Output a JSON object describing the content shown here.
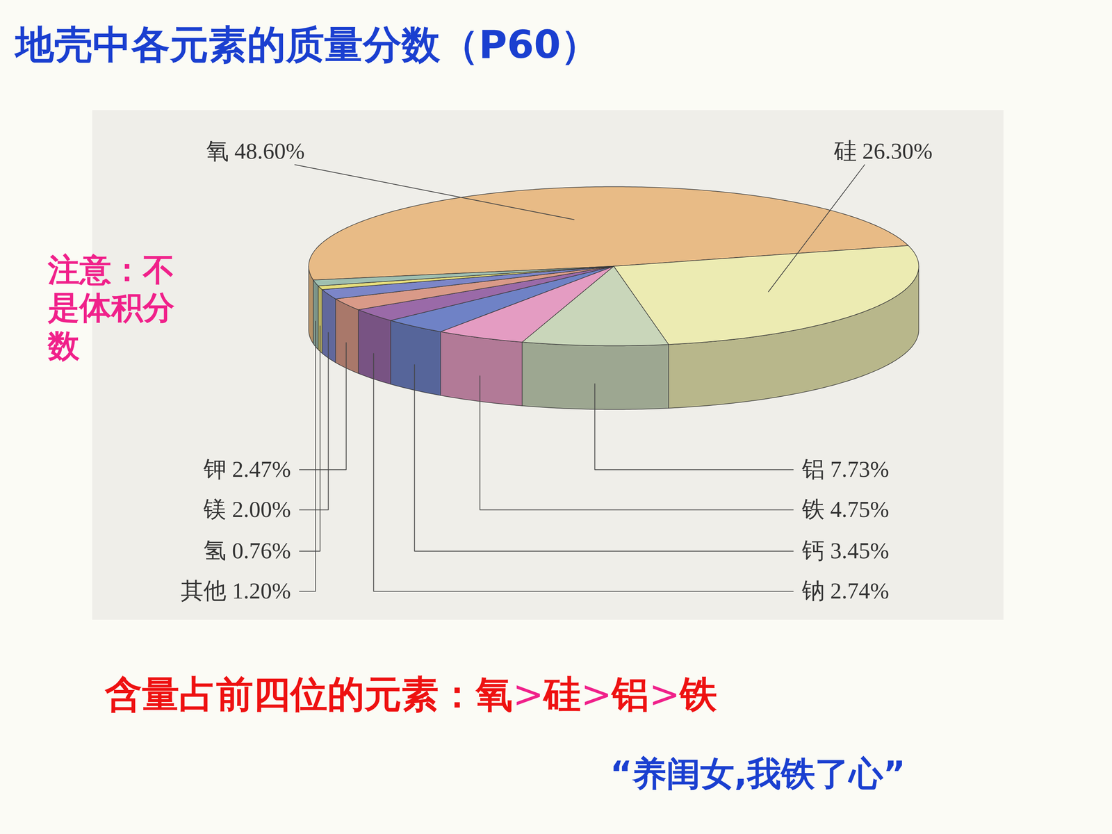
{
  "chart_data": {
    "type": "pie",
    "title": "地壳中各元素的质量分数（P60）",
    "categories": [
      "氧",
      "硅",
      "铝",
      "铁",
      "钙",
      "钠",
      "钾",
      "镁",
      "氢",
      "其他"
    ],
    "values": [
      48.6,
      26.3,
      7.73,
      4.75,
      3.45,
      2.74,
      2.47,
      2.0,
      0.76,
      1.2
    ],
    "value_labels": [
      "48.60%",
      "26.30%",
      "7.73%",
      "4.75%",
      "3.45%",
      "2.74%",
      "2.47%",
      "2.00%",
      "0.76%",
      "1.20%"
    ],
    "colors": [
      "#e8bb86",
      "#ecebb2",
      "#c9d6ba",
      "#e49cc2",
      "#6f82c6",
      "#9a6aa8",
      "#d99a88",
      "#7c86c8",
      "#e6de7c",
      "#9fbfb0"
    ],
    "data_labels": true,
    "annotations": [
      "注意：不是体积分数",
      "含量占前四位的元素：氧>硅>铝>铁",
      "“养闺女,我铁了心”"
    ]
  }
}
